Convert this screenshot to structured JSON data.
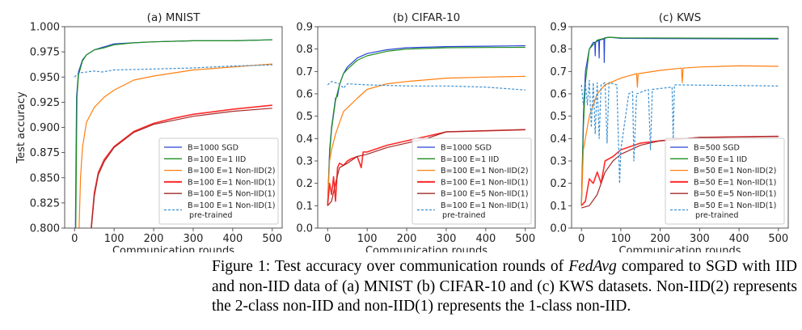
{
  "chart_data": [
    {
      "type": "line",
      "title": "(a) MNIST",
      "xlabel": "Communication rounds",
      "ylabel": "Test accuracy",
      "xlim": [
        -25,
        525
      ],
      "ylim": [
        0.8,
        1.0
      ],
      "xticks": [
        0,
        100,
        200,
        300,
        400,
        500
      ],
      "yticks": [
        "0.800",
        "0.825",
        "0.850",
        "0.875",
        "0.900",
        "0.925",
        "0.950",
        "0.975",
        "1.000"
      ],
      "grid": false,
      "legend_placement": "lower-right",
      "series": [
        {
          "name": "B=1000 SGD",
          "color": "#2744d6",
          "style": "solid",
          "x": [
            0,
            5,
            10,
            20,
            30,
            50,
            75,
            100,
            150,
            200,
            300,
            400,
            500
          ],
          "y": [
            0.7,
            0.93,
            0.955,
            0.967,
            0.972,
            0.977,
            0.98,
            0.983,
            0.984,
            0.985,
            0.986,
            0.986,
            0.987
          ]
        },
        {
          "name": "B=100 E=1 IID",
          "color": "#1f8f1f",
          "style": "solid",
          "x": [
            0,
            3,
            6,
            10,
            20,
            30,
            50,
            75,
            100,
            150,
            200,
            300,
            400,
            500
          ],
          "y": [
            0.7,
            0.8,
            0.93,
            0.952,
            0.966,
            0.972,
            0.977,
            0.979,
            0.982,
            0.984,
            0.985,
            0.986,
            0.986,
            0.987
          ]
        },
        {
          "name": "B=100 E=1 Non-IID(2)",
          "color": "#ff7f0e",
          "style": "solid",
          "x": [
            10,
            15,
            20,
            30,
            50,
            75,
            100,
            150,
            200,
            300,
            400,
            500
          ],
          "y": [
            0.78,
            0.85,
            0.88,
            0.905,
            0.92,
            0.93,
            0.937,
            0.947,
            0.951,
            0.957,
            0.96,
            0.963
          ]
        },
        {
          "name": "B=100 E=1 Non-IID(1)",
          "color": "#ff2a2a",
          "style": "solid",
          "x": [
            40,
            50,
            60,
            75,
            100,
            150,
            200,
            250,
            300,
            400,
            500
          ],
          "y": [
            0.79,
            0.835,
            0.855,
            0.868,
            0.881,
            0.896,
            0.904,
            0.909,
            0.913,
            0.918,
            0.922
          ]
        },
        {
          "name": "B=100 E=5 Non-IID(1)",
          "color": "#a52a2a",
          "style": "solid",
          "x": [
            40,
            50,
            60,
            75,
            100,
            150,
            200,
            250,
            300,
            400,
            500
          ],
          "y": [
            0.79,
            0.832,
            0.853,
            0.866,
            0.88,
            0.895,
            0.903,
            0.907,
            0.911,
            0.916,
            0.919
          ]
        },
        {
          "name": "B=100 E=1 Non-IID(1)\npre-trained",
          "color": "#3a8fd0",
          "style": "dashed",
          "x": [
            0,
            10,
            50,
            70,
            100,
            200,
            300,
            400,
            500
          ],
          "y": [
            0.95,
            0.954,
            0.956,
            0.955,
            0.957,
            0.958,
            0.959,
            0.961,
            0.962
          ]
        }
      ]
    },
    {
      "type": "line",
      "title": "(b) CIFAR-10",
      "xlabel": "Communication rounds",
      "ylabel": "",
      "xlim": [
        -25,
        525
      ],
      "ylim": [
        0.0,
        0.9
      ],
      "xticks": [
        0,
        100,
        200,
        300,
        400,
        500
      ],
      "yticks": [
        "0.0",
        "0.1",
        "0.2",
        "0.3",
        "0.4",
        "0.5",
        "0.6",
        "0.7",
        "0.8",
        "0.9"
      ],
      "grid": false,
      "legend_placement": "lower-right",
      "series": [
        {
          "name": "B=1000 SGD",
          "color": "#2744d6",
          "style": "solid",
          "x": [
            0,
            5,
            10,
            20,
            25,
            30,
            40,
            50,
            75,
            100,
            150,
            200,
            300,
            400,
            500
          ],
          "y": [
            0.1,
            0.35,
            0.45,
            0.58,
            0.59,
            0.64,
            0.69,
            0.72,
            0.76,
            0.78,
            0.797,
            0.806,
            0.811,
            0.813,
            0.815
          ]
        },
        {
          "name": "B=100 E=1 IID",
          "color": "#1f8f1f",
          "style": "solid",
          "x": [
            0,
            5,
            10,
            20,
            30,
            40,
            50,
            75,
            100,
            150,
            200,
            300,
            400,
            500
          ],
          "y": [
            0.1,
            0.33,
            0.44,
            0.57,
            0.64,
            0.69,
            0.71,
            0.75,
            0.77,
            0.79,
            0.8,
            0.806,
            0.807,
            0.808
          ]
        },
        {
          "name": "B=100 E=1 Non-IID(2)",
          "color": "#ff7f0e",
          "style": "solid",
          "x": [
            0,
            5,
            10,
            20,
            40,
            75,
            100,
            150,
            200,
            300,
            400,
            500
          ],
          "y": [
            0.1,
            0.3,
            0.35,
            0.42,
            0.52,
            0.58,
            0.62,
            0.645,
            0.655,
            0.67,
            0.675,
            0.678
          ]
        },
        {
          "name": "B=100 E=1 Non-IID(1)",
          "color": "#ff2a2a",
          "style": "solid",
          "x": [
            0,
            5,
            10,
            15,
            20,
            25,
            30,
            40,
            50,
            60,
            75,
            85,
            90,
            100,
            150,
            200,
            250,
            300,
            400,
            500
          ],
          "y": [
            0.1,
            0.2,
            0.15,
            0.23,
            0.12,
            0.27,
            0.29,
            0.28,
            0.3,
            0.31,
            0.32,
            0.27,
            0.34,
            0.34,
            0.37,
            0.39,
            0.41,
            0.43,
            0.435,
            0.44
          ]
        },
        {
          "name": "B=100 E=5 Non-IID(1)",
          "color": "#a52a2a",
          "style": "solid",
          "x": [
            0,
            10,
            20,
            30,
            50,
            75,
            100,
            150,
            200,
            250,
            300,
            400,
            500
          ],
          "y": [
            0.1,
            0.12,
            0.2,
            0.27,
            0.29,
            0.32,
            0.33,
            0.36,
            0.38,
            0.4,
            0.43,
            0.435,
            0.44
          ]
        },
        {
          "name": "B=100 E=1 Non-IID(1)\npre-trained",
          "color": "#3a8fd0",
          "style": "dashed",
          "x": [
            0,
            10,
            30,
            40,
            50,
            100,
            200,
            300,
            400,
            500
          ],
          "y": [
            0.64,
            0.655,
            0.645,
            0.625,
            0.645,
            0.64,
            0.635,
            0.635,
            0.63,
            0.617
          ]
        }
      ]
    },
    {
      "type": "line",
      "title": "(c) KWS",
      "xlabel": "Communication rounds",
      "ylabel": "",
      "xlim": [
        -25,
        525
      ],
      "ylim": [
        0.0,
        0.9
      ],
      "xticks": [
        0,
        100,
        200,
        300,
        400,
        500
      ],
      "yticks": [
        "0.0",
        "0.1",
        "0.2",
        "0.3",
        "0.4",
        "0.5",
        "0.6",
        "0.7",
        "0.8",
        "0.9"
      ],
      "grid": false,
      "legend_placement": "lower-right",
      "series": [
        {
          "name": "B=500 SGD",
          "color": "#2744d6",
          "style": "solid",
          "x": [
            0,
            5,
            10,
            20,
            30,
            34,
            35,
            36,
            44,
            45,
            46,
            57,
            58,
            59,
            70,
            100,
            200,
            500
          ],
          "y": [
            0.1,
            0.5,
            0.7,
            0.8,
            0.83,
            0.83,
            0.77,
            0.83,
            0.84,
            0.76,
            0.84,
            0.845,
            0.74,
            0.85,
            0.853,
            0.848,
            0.847,
            0.845
          ]
        },
        {
          "name": "B=50 E=1 IID",
          "color": "#1f8f1f",
          "style": "solid",
          "x": [
            0,
            5,
            10,
            20,
            40,
            70,
            100,
            500
          ],
          "y": [
            0.1,
            0.45,
            0.65,
            0.8,
            0.84,
            0.853,
            0.85,
            0.848
          ]
        },
        {
          "name": "B=50 E=1 Non-IID(2)",
          "color": "#ff7f0e",
          "style": "solid",
          "x": [
            0,
            5,
            20,
            40,
            60,
            100,
            140,
            142,
            144,
            200,
            254,
            256,
            258,
            300,
            400,
            500
          ],
          "y": [
            0.1,
            0.35,
            0.5,
            0.6,
            0.64,
            0.67,
            0.69,
            0.63,
            0.69,
            0.705,
            0.715,
            0.65,
            0.715,
            0.72,
            0.725,
            0.723
          ]
        },
        {
          "name": "B=50 E=1 Non-IID(1)",
          "color": "#ff2a2a",
          "style": "solid",
          "x": [
            0,
            10,
            20,
            30,
            40,
            50,
            60,
            80,
            100,
            150,
            200,
            300,
            500
          ],
          "y": [
            0.1,
            0.12,
            0.22,
            0.2,
            0.25,
            0.2,
            0.3,
            0.32,
            0.35,
            0.38,
            0.39,
            0.405,
            0.41
          ]
        },
        {
          "name": "B=50 E=5 Non-IID(1)",
          "color": "#a52a2a",
          "style": "solid",
          "x": [
            0,
            20,
            40,
            60,
            80,
            100,
            150,
            200,
            300,
            500
          ],
          "y": [
            0.09,
            0.1,
            0.15,
            0.25,
            0.3,
            0.33,
            0.37,
            0.39,
            0.405,
            0.41
          ]
        },
        {
          "name": "B=50 E=1 Non-IID(1)\npre-trained",
          "color": "#3a8fd0",
          "style": "dashed",
          "x": [
            0,
            5,
            10,
            15,
            20,
            25,
            30,
            35,
            40,
            45,
            50,
            60,
            65,
            70,
            90,
            97,
            100,
            120,
            130,
            133,
            140,
            170,
            175,
            180,
            230,
            233,
            236,
            500
          ],
          "y": [
            0.64,
            0.55,
            0.65,
            0.55,
            0.66,
            0.45,
            0.65,
            0.42,
            0.65,
            0.4,
            0.64,
            0.65,
            0.38,
            0.65,
            0.64,
            0.2,
            0.35,
            0.6,
            0.61,
            0.3,
            0.6,
            0.62,
            0.35,
            0.62,
            0.63,
            0.4,
            0.64,
            0.635
          ]
        }
      ]
    }
  ],
  "caption": {
    "prefix": "Figure 1: Test accuracy over communication rounds of ",
    "method": "FedAvg",
    "suffix": " compared to SGD with IID and non-IID data of (a) MNIST (b) CIFAR-10 and (c) KWS datasets. Non-IID(2) represents the 2-class non-IID and non-IID(1) represents the 1-class non-IID."
  }
}
